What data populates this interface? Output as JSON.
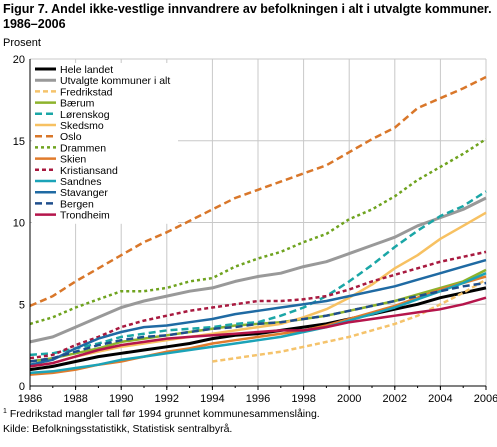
{
  "title_line1": "Figur 7. Andel ikke-vestlige innvandrere av befolkningen i alt i utvalgte kommuner.",
  "title_line2": "1986–2006",
  "footnote_mark": "1",
  "footnote_text": " Fredrikstad mangler tall før 1994 grunnet kommunesammenslåing.",
  "source": "Kilde: Befolkningsstatistikk, Statistisk sentralbyrå.",
  "chart_data": {
    "type": "line",
    "ylabel": "Prosent",
    "xlabel": "",
    "xlim": [
      1986,
      2006
    ],
    "ylim": [
      0,
      20
    ],
    "x_ticks": [
      "1986",
      "1988",
      "1990",
      "1992",
      "1994",
      "1996",
      "1998",
      "2000",
      "2002",
      "2004",
      "2006"
    ],
    "y_ticks": [
      "0",
      "5",
      "10",
      "15",
      "20"
    ],
    "grid": true,
    "legend_position": "top-left",
    "x": [
      1986,
      1987,
      1988,
      1989,
      1990,
      1991,
      1992,
      1993,
      1994,
      1995,
      1996,
      1997,
      1998,
      1999,
      2000,
      2001,
      2002,
      2003,
      2004,
      2005,
      2006
    ],
    "series": [
      {
        "name": "Hele landet",
        "color": "#000000",
        "dash": "solid",
        "width": 3,
        "values": [
          1.0,
          1.2,
          1.5,
          1.8,
          2.0,
          2.2,
          2.4,
          2.6,
          2.9,
          3.1,
          3.2,
          3.4,
          3.6,
          3.8,
          4.1,
          4.4,
          4.7,
          5.0,
          5.4,
          5.7,
          6.0
        ]
      },
      {
        "name": "Utvalgte kommuner i alt",
        "color": "#999999",
        "dash": "solid",
        "width": 3,
        "values": [
          2.7,
          3.0,
          3.6,
          4.2,
          4.8,
          5.2,
          5.5,
          5.8,
          6.0,
          6.4,
          6.7,
          6.9,
          7.3,
          7.6,
          8.1,
          8.6,
          9.1,
          9.8,
          10.3,
          10.8,
          11.5
        ]
      },
      {
        "name": "Fredrikstad",
        "color": "#f5c36b",
        "dash": "5,3",
        "width": 2.5,
        "values": [
          null,
          null,
          null,
          null,
          null,
          null,
          null,
          null,
          1.5,
          1.7,
          1.9,
          2.1,
          2.4,
          2.7,
          3.0,
          3.4,
          3.8,
          4.3,
          5.0,
          5.7,
          6.5
        ]
      },
      {
        "name": "Bærum",
        "color": "#8db32c",
        "dash": "solid",
        "width": 2.5,
        "values": [
          1.5,
          1.7,
          2.0,
          2.3,
          2.7,
          2.9,
          3.1,
          3.3,
          3.5,
          3.7,
          3.8,
          3.9,
          4.1,
          4.3,
          4.6,
          4.9,
          5.2,
          5.6,
          6.0,
          6.4,
          7.1
        ]
      },
      {
        "name": "Lørenskog",
        "color": "#1aa6a6",
        "dash": "7,4",
        "width": 2.5,
        "values": [
          1.9,
          2.0,
          2.3,
          2.6,
          3.0,
          3.2,
          3.4,
          3.5,
          3.6,
          3.8,
          3.9,
          4.3,
          4.8,
          5.5,
          6.4,
          7.4,
          8.5,
          9.5,
          10.4,
          11.0,
          11.9
        ]
      },
      {
        "name": "Skedsmo",
        "color": "#f7c162",
        "dash": "solid",
        "width": 2.5,
        "values": [
          1.2,
          1.4,
          1.8,
          2.1,
          2.4,
          2.6,
          2.8,
          3.0,
          3.2,
          3.4,
          3.6,
          3.8,
          4.2,
          4.7,
          5.4,
          6.2,
          7.2,
          8.0,
          9.0,
          9.8,
          10.6
        ]
      },
      {
        "name": "Oslo",
        "color": "#d9772a",
        "dash": "7,4",
        "width": 2.5,
        "values": [
          4.9,
          5.5,
          6.4,
          7.2,
          8.0,
          8.8,
          9.4,
          10.1,
          10.8,
          11.5,
          12.0,
          12.5,
          13.0,
          13.5,
          14.3,
          15.1,
          15.8,
          17.0,
          17.6,
          18.2,
          18.9
        ]
      },
      {
        "name": "Drammen",
        "color": "#6fa31f",
        "dash": "3,3",
        "width": 2.5,
        "values": [
          3.8,
          4.2,
          4.8,
          5.3,
          5.8,
          5.8,
          6.0,
          6.4,
          6.6,
          7.3,
          7.8,
          8.2,
          8.8,
          9.3,
          10.2,
          10.8,
          11.6,
          12.6,
          13.4,
          14.2,
          15.1
        ]
      },
      {
        "name": "Skien",
        "color": "#e07b2c",
        "dash": "solid",
        "width": 2.5,
        "values": [
          0.7,
          0.8,
          1.0,
          1.3,
          1.5,
          1.8,
          2.1,
          2.3,
          2.6,
          2.8,
          3.0,
          3.2,
          3.4,
          3.7,
          4.1,
          4.5,
          4.9,
          5.4,
          5.9,
          6.3,
          6.7
        ]
      },
      {
        "name": "Kristiansand",
        "color": "#a8193f",
        "dash": "4,3",
        "width": 2.5,
        "values": [
          1.7,
          1.9,
          2.5,
          3.0,
          3.6,
          4.0,
          4.3,
          4.6,
          4.8,
          5.0,
          5.2,
          5.2,
          5.3,
          5.5,
          5.9,
          6.4,
          6.8,
          7.2,
          7.6,
          7.9,
          8.2
        ]
      },
      {
        "name": "Sandnes",
        "color": "#1ba3b8",
        "dash": "solid",
        "width": 2.5,
        "values": [
          0.8,
          0.9,
          1.1,
          1.3,
          1.6,
          1.8,
          2.0,
          2.2,
          2.4,
          2.6,
          2.8,
          3.0,
          3.3,
          3.6,
          4.0,
          4.4,
          4.8,
          5.3,
          5.8,
          6.3,
          6.9
        ]
      },
      {
        "name": "Stavanger",
        "color": "#1f6aa3",
        "dash": "solid",
        "width": 2.5,
        "values": [
          1.3,
          1.6,
          2.3,
          2.9,
          3.3,
          3.6,
          3.7,
          3.9,
          4.1,
          4.4,
          4.6,
          4.8,
          5.0,
          5.2,
          5.5,
          5.8,
          6.1,
          6.5,
          6.9,
          7.3,
          7.7
        ]
      },
      {
        "name": "Bergen",
        "color": "#1f4e8c",
        "dash": "7,4",
        "width": 2.5,
        "values": [
          1.5,
          1.7,
          2.1,
          2.5,
          2.8,
          3.0,
          3.1,
          3.3,
          3.5,
          3.6,
          3.8,
          3.9,
          4.1,
          4.3,
          4.6,
          4.9,
          5.2,
          5.5,
          5.8,
          6.1,
          6.3
        ]
      },
      {
        "name": "Trondheim",
        "color": "#b5154b",
        "dash": "solid",
        "width": 2.5,
        "values": [
          1.2,
          1.4,
          1.8,
          2.2,
          2.5,
          2.7,
          2.9,
          3.0,
          3.1,
          3.2,
          3.3,
          3.4,
          3.4,
          3.6,
          3.9,
          4.1,
          4.3,
          4.5,
          4.7,
          5.0,
          5.4
        ]
      }
    ]
  }
}
